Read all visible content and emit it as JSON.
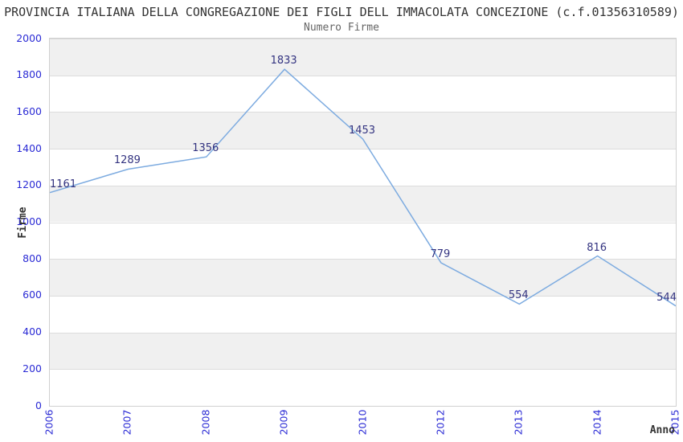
{
  "header": {
    "title": "PROVINCIA ITALIANA DELLA CONGREGAZIONE DEI FIGLI DELL IMMACOLATA CONCEZIONE (c.f.01356310589)",
    "subtitle": "Numero Firme"
  },
  "chart_data": {
    "type": "line",
    "title": "PROVINCIA ITALIANA DELLA CONGREGAZIONE DEI FIGLI DELL IMMACOLATA CONCEZIONE (c.f.01356310589)",
    "subtitle": "Numero Firme",
    "categories": [
      "2006",
      "2007",
      "2008",
      "2009",
      "2010",
      "2012",
      "2013",
      "2014",
      "2015"
    ],
    "values": [
      1161,
      1289,
      1356,
      1833,
      1453,
      779,
      554,
      816,
      544
    ],
    "xlabel": "Anno",
    "ylabel": "Firme",
    "ylim": [
      0,
      2000
    ],
    "ytick_step": 200,
    "yticks": [
      0,
      200,
      400,
      600,
      800,
      1000,
      1200,
      1400,
      1600,
      1800,
      2000
    ],
    "grid": true,
    "legend_position": "none",
    "colors": {
      "line": "#7dabe0",
      "axis_tick_labels": "#2b2bd5",
      "data_labels": "#333380",
      "band_gray": "#f0f0f0",
      "band_white": "#ffffff",
      "plot_border": "#d0d0d0",
      "gridline": "#dcdcdc",
      "title": "#333333",
      "subtitle": "#666666",
      "axis_title": "#333333"
    }
  }
}
